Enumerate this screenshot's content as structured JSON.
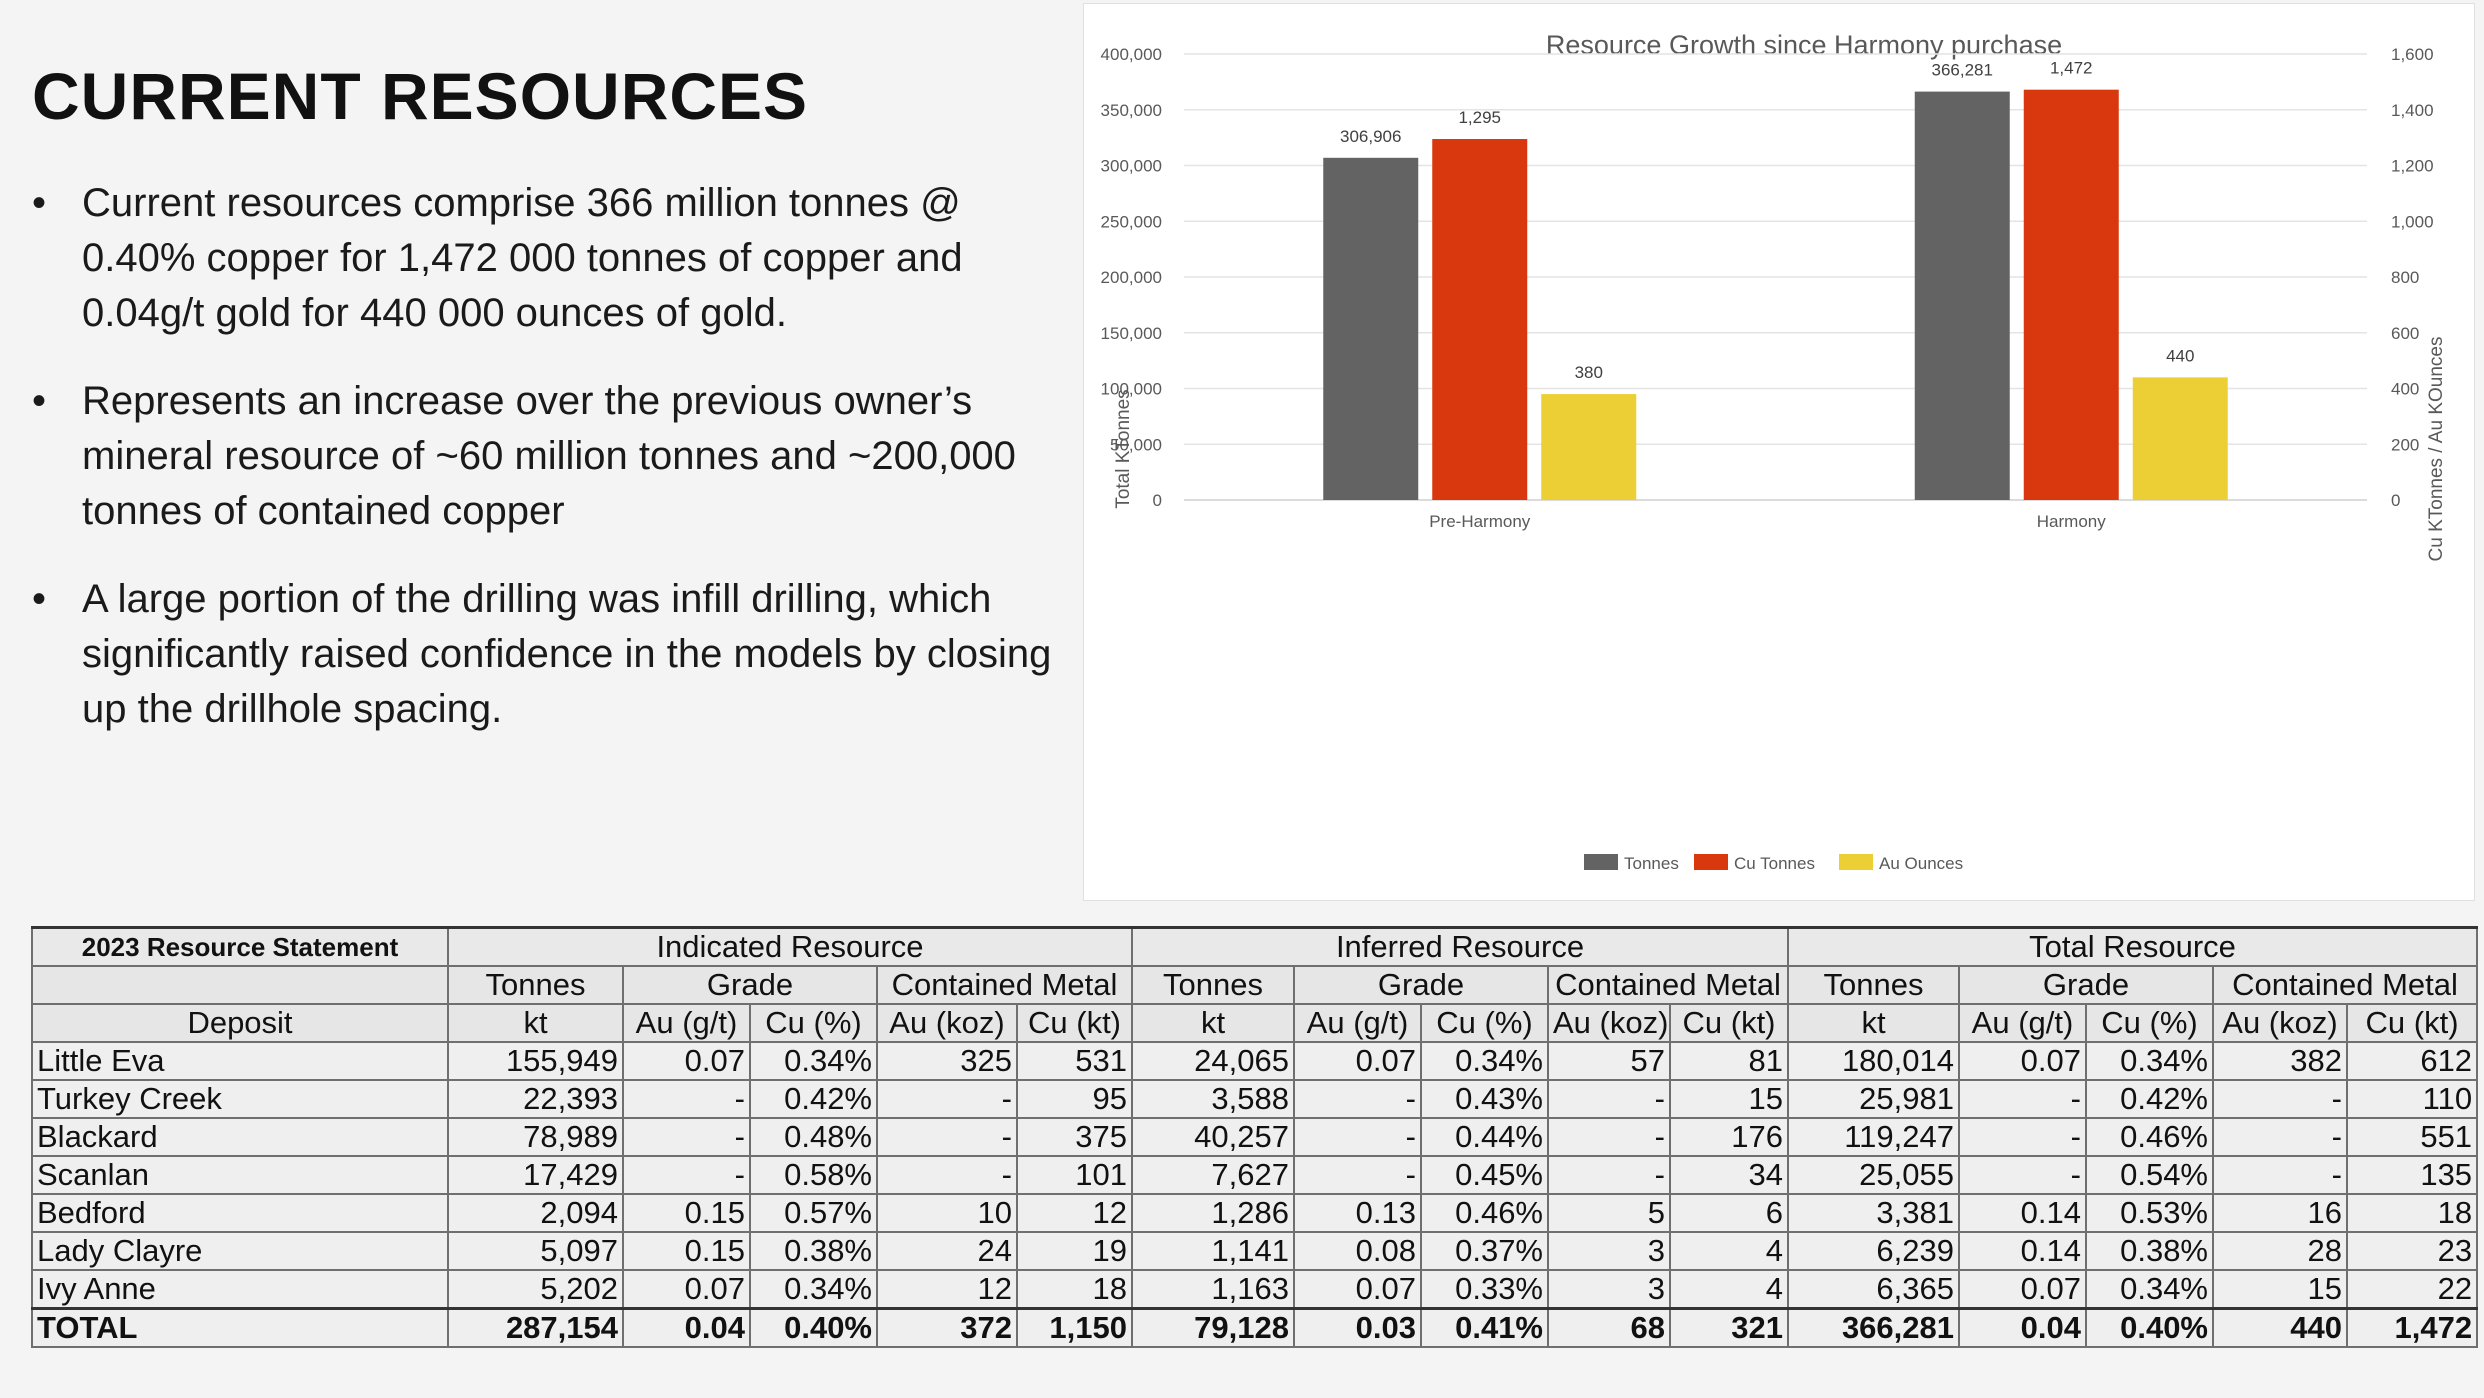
{
  "slide": {
    "title": "CURRENT RESOURCES",
    "bullet_glyph": "•",
    "bullets": [
      "Current resources comprise 366 million tonnes @ 0.40% copper for 1,472 000 tonnes of copper and 0.04g/t gold for 440 000 ounces of gold.",
      "Represents an increase over the previous owner’s mineral resource of ~60 million tonnes and ~200,000 tonnes of contained copper",
      "A large portion of the drilling was infill drilling, which significantly raised confidence in  the models by closing up the drillhole spacing."
    ]
  },
  "chart_data": {
    "type": "bar",
    "title": "Resource Growth since Harmony purchase",
    "categories": [
      "Pre-Harmony",
      "Harmony"
    ],
    "ylabel": "Total KTonnes",
    "y2label": "Cu KTonnes / Au KOunces",
    "ylim": [
      0,
      400000
    ],
    "y2lim": [
      0,
      1600
    ],
    "yticks": [
      "0",
      "50,000",
      "100,000",
      "150,000",
      "200,000",
      "250,000",
      "300,000",
      "350,000",
      "400,000"
    ],
    "y2ticks": [
      "0",
      "200",
      "400",
      "600",
      "800",
      "1,000",
      "1,200",
      "1,400",
      "1,600"
    ],
    "grid": true,
    "legend": "bottom",
    "series": [
      {
        "name": "Tonnes",
        "axis": "left",
        "color": "#636363",
        "values": [
          306906,
          366281
        ],
        "labels": [
          "306,906",
          "366,281"
        ]
      },
      {
        "name": "Cu Tonnes",
        "axis": "right",
        "color": "#d9380e",
        "values": [
          1295,
          1472
        ],
        "labels": [
          "1,295",
          "1,472"
        ]
      },
      {
        "name": "Au Ounces",
        "axis": "right",
        "color": "#ebcf35",
        "values": [
          380,
          440
        ],
        "labels": [
          "380",
          "440"
        ]
      }
    ]
  },
  "table": {
    "caption": "2023 Resource Statement",
    "groups": [
      "Indicated Resource",
      "Inferred Resource",
      "Total Resource"
    ],
    "subgroups": [
      "Tonnes",
      "Grade",
      "Contained Metal"
    ],
    "deposit_header": "Deposit",
    "units": [
      "kt",
      "Au (g/t)",
      "Cu (%)",
      "Au (koz)",
      "Cu (kt)"
    ],
    "rows": [
      {
        "deposit": "Little Eva",
        "cells": [
          "155,949",
          "0.07",
          "0.34%",
          "325",
          "531",
          "24,065",
          "0.07",
          "0.34%",
          "57",
          "81",
          "180,014",
          "0.07",
          "0.34%",
          "382",
          "612"
        ]
      },
      {
        "deposit": "Turkey Creek",
        "cells": [
          "22,393",
          "-",
          "0.42%",
          "-",
          "95",
          "3,588",
          "-",
          "0.43%",
          "-",
          "15",
          "25,981",
          "-",
          "0.42%",
          "-",
          "110"
        ]
      },
      {
        "deposit": "Blackard",
        "cells": [
          "78,989",
          "-",
          "0.48%",
          "-",
          "375",
          "40,257",
          "-",
          "0.44%",
          "-",
          "176",
          "119,247",
          "-",
          "0.46%",
          "-",
          "551"
        ]
      },
      {
        "deposit": "Scanlan",
        "cells": [
          "17,429",
          "-",
          "0.58%",
          "-",
          "101",
          "7,627",
          "-",
          "0.45%",
          "-",
          "34",
          "25,055",
          "-",
          "0.54%",
          "-",
          "135"
        ]
      },
      {
        "deposit": "Bedford",
        "cells": [
          "2,094",
          "0.15",
          "0.57%",
          "10",
          "12",
          "1,286",
          "0.13",
          "0.46%",
          "5",
          "6",
          "3,381",
          "0.14",
          "0.53%",
          "16",
          "18"
        ]
      },
      {
        "deposit": "Lady Clayre",
        "cells": [
          "5,097",
          "0.15",
          "0.38%",
          "24",
          "19",
          "1,141",
          "0.08",
          "0.37%",
          "3",
          "4",
          "6,239",
          "0.14",
          "0.38%",
          "28",
          "23"
        ]
      },
      {
        "deposit": "Ivy Anne",
        "cells": [
          "5,202",
          "0.07",
          "0.34%",
          "12",
          "18",
          "1,163",
          "0.07",
          "0.33%",
          "3",
          "4",
          "6,365",
          "0.07",
          "0.34%",
          "15",
          "22"
        ]
      }
    ],
    "total": {
      "deposit": "TOTAL",
      "cells": [
        "287,154",
        "0.04",
        "0.40%",
        "372",
        "1,150",
        "79,128",
        "0.03",
        "0.41%",
        "68",
        "321",
        "366,281",
        "0.04",
        "0.40%",
        "440",
        "1,472"
      ]
    }
  }
}
